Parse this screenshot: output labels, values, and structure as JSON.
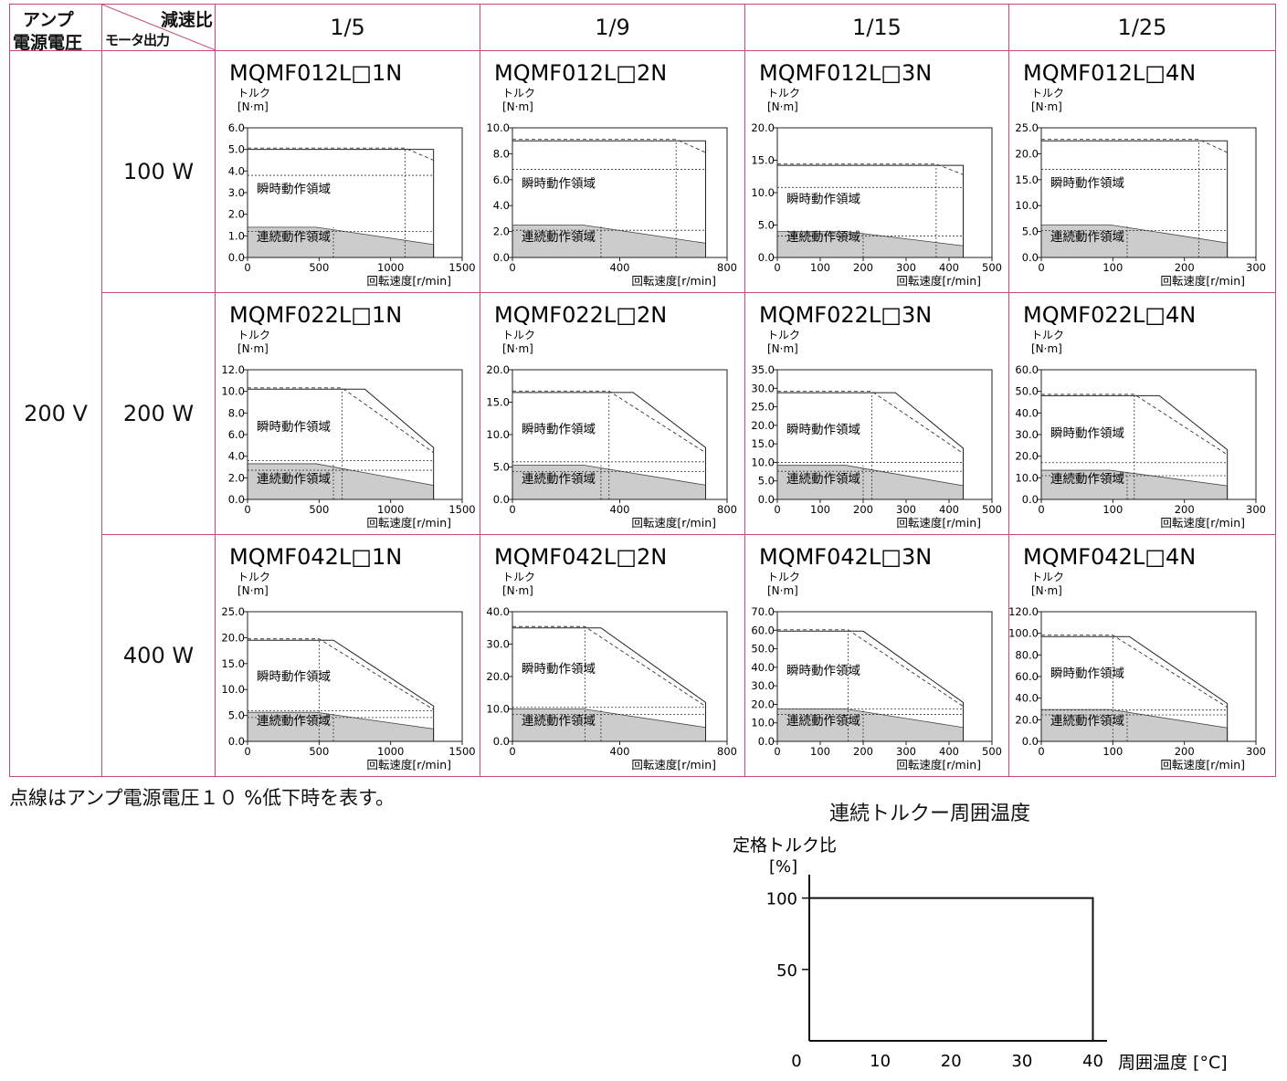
{
  "header": {
    "amp_label_line1": "アンプ",
    "amp_label_line2": "電源電圧",
    "reduction_ratio_label": "減速比",
    "motor_output_label": "モータ出力",
    "ratios": [
      "1/5",
      "1/9",
      "1/15",
      "1/25"
    ]
  },
  "voltage": "200 V",
  "rows": [
    {
      "output": "100 W"
    },
    {
      "output": "200 W"
    },
    {
      "output": "400 W"
    }
  ],
  "axis_text": {
    "y_label_1": "トルク",
    "y_label_2": "[N·m]",
    "x_label": "回転速度[r/min]",
    "intermittent_region": "瞬時動作領域",
    "continuous_region": "連続動作領域"
  },
  "chart_data": [
    {
      "type": "area",
      "title": "MQMF012L□1N",
      "xlabel": "回転速度[r/min]",
      "ylabel": "トルク [N·m]",
      "xlim": [
        0,
        1500
      ],
      "ylim": [
        0,
        6
      ],
      "xticks": [
        0,
        500,
        1000,
        1500
      ],
      "yticks": [
        0,
        1,
        2,
        3,
        4,
        5,
        6
      ],
      "ytick_labels": [
        "0.0",
        "1.0",
        "2.0",
        "3.0",
        "4.0",
        "5.0",
        "6.0"
      ],
      "peak_torque": 5.0,
      "peak_end_speed": 1300,
      "max_speed": 1300,
      "max_speed_torque": 5.0,
      "peak_torque_low": 3.8,
      "dashed_end_speed": 1100,
      "dashed_max_torque": 3.8,
      "cont_start": 1.4,
      "cont_end": 0.6,
      "cont_dashed": 1.2,
      "cont_knee": 600
    },
    {
      "type": "area",
      "title": "MQMF012L□2N",
      "xlabel": "回転速度[r/min]",
      "ylabel": "トルク [N·m]",
      "xlim": [
        0,
        800
      ],
      "ylim": [
        0,
        10
      ],
      "xticks": [
        0,
        400,
        800
      ],
      "yticks": [
        0,
        2,
        4,
        6,
        8,
        10
      ],
      "ytick_labels": [
        "0.0",
        "2.0",
        "4.0",
        "6.0",
        "8.0",
        "10.0"
      ],
      "peak_torque": 9.0,
      "peak_end_speed": 720,
      "max_speed": 720,
      "max_speed_torque": 9.0,
      "peak_torque_low": 6.8,
      "dashed_end_speed": 610,
      "dashed_max_torque": 6.8,
      "cont_start": 2.5,
      "cont_end": 1.1,
      "cont_dashed": 2.1,
      "cont_knee": 330
    },
    {
      "type": "area",
      "title": "MQMF012L□3N",
      "xlabel": "回転速度[r/min]",
      "ylabel": "トルク [N·m]",
      "xlim": [
        0,
        500
      ],
      "ylim": [
        0,
        20
      ],
      "xticks": [
        0,
        100,
        200,
        300,
        400,
        500
      ],
      "yticks": [
        0,
        5,
        10,
        15,
        20
      ],
      "ytick_labels": [
        "0.0",
        "5.0",
        "10.0",
        "15.0",
        "20.0"
      ],
      "peak_torque": 14.2,
      "peak_end_speed": 433,
      "max_speed": 433,
      "max_speed_torque": 14.2,
      "peak_torque_low": 10.8,
      "dashed_end_speed": 370,
      "dashed_max_torque": 10.8,
      "cont_start": 4.0,
      "cont_end": 1.8,
      "cont_dashed": 3.3,
      "cont_knee": 200
    },
    {
      "type": "area",
      "title": "MQMF012L□4N",
      "xlabel": "回転速度[r/min]",
      "ylabel": "トルク [N·m]",
      "xlim": [
        0,
        300
      ],
      "ylim": [
        0,
        25
      ],
      "xticks": [
        0,
        100,
        200,
        300
      ],
      "yticks": [
        0,
        5,
        10,
        15,
        20,
        25
      ],
      "ytick_labels": [
        "0.0",
        "5.0",
        "10.0",
        "15.0",
        "20.0",
        "25.0"
      ],
      "peak_torque": 22.5,
      "peak_end_speed": 260,
      "max_speed": 260,
      "max_speed_torque": 22.5,
      "peak_torque_low": 17.0,
      "dashed_end_speed": 220,
      "dashed_max_torque": 17.0,
      "cont_start": 6.3,
      "cont_end": 2.8,
      "cont_dashed": 5.2,
      "cont_knee": 120
    },
    {
      "type": "area",
      "title": "MQMF022L□1N",
      "xlabel": "回転速度[r/min]",
      "ylabel": "トルク [N·m]",
      "xlim": [
        0,
        1500
      ],
      "ylim": [
        0,
        12
      ],
      "xticks": [
        0,
        500,
        1000,
        1500
      ],
      "yticks": [
        0,
        2,
        4,
        6,
        8,
        10,
        12
      ],
      "ytick_labels": [
        "0.0",
        "2.0",
        "4.0",
        "6.0",
        "8.0",
        "10.0",
        "12.0"
      ],
      "peak_torque": 10.2,
      "peak_end_speed": 820,
      "max_speed": 1300,
      "max_speed_torque": 4.8,
      "peak_torque_low": 3.6,
      "dashed_end_speed": 660,
      "dashed_max_torque": 3.6,
      "cont_start": 3.3,
      "cont_end": 1.3,
      "cont_dashed": 2.7,
      "cont_knee": 600
    },
    {
      "type": "area",
      "title": "MQMF022L□2N",
      "xlabel": "回転速度[r/min]",
      "ylabel": "トルク [N·m]",
      "xlim": [
        0,
        800
      ],
      "ylim": [
        0,
        20
      ],
      "xticks": [
        0,
        400,
        800
      ],
      "yticks": [
        0,
        5,
        10,
        15,
        20
      ],
      "ytick_labels": [
        "0.0",
        "5.0",
        "10.0",
        "15.0",
        "20.0"
      ],
      "peak_torque": 16.5,
      "peak_end_speed": 450,
      "max_speed": 720,
      "max_speed_torque": 8.0,
      "peak_torque_low": 5.8,
      "dashed_end_speed": 360,
      "dashed_max_torque": 5.8,
      "cont_start": 5.3,
      "cont_end": 2.2,
      "cont_dashed": 4.3,
      "cont_knee": 330
    },
    {
      "type": "area",
      "title": "MQMF022L□3N",
      "xlabel": "回転速度[r/min]",
      "ylabel": "トルク [N·m]",
      "xlim": [
        0,
        500
      ],
      "ylim": [
        0,
        35
      ],
      "xticks": [
        0,
        100,
        200,
        300,
        400,
        500
      ],
      "yticks": [
        0,
        5,
        10,
        15,
        20,
        25,
        30,
        35
      ],
      "ytick_labels": [
        "0.0",
        "5.0",
        "10.0",
        "15.0",
        "20.0",
        "25.0",
        "30.0",
        "35.0"
      ],
      "peak_torque": 28.8,
      "peak_end_speed": 275,
      "max_speed": 433,
      "max_speed_torque": 13.8,
      "peak_torque_low": 10.0,
      "dashed_end_speed": 220,
      "dashed_max_torque": 10.0,
      "cont_start": 9.2,
      "cont_end": 3.7,
      "cont_dashed": 7.6,
      "cont_knee": 200
    },
    {
      "type": "area",
      "title": "MQMF022L□4N",
      "xlabel": "回転速度[r/min]",
      "ylabel": "トルク [N·m]",
      "xlim": [
        0,
        300
      ],
      "ylim": [
        0,
        60
      ],
      "xticks": [
        0,
        100,
        200,
        300
      ],
      "yticks": [
        0,
        10,
        20,
        30,
        40,
        50,
        60
      ],
      "ytick_labels": [
        "0.0",
        "10.0",
        "20.0",
        "30.0",
        "40.0",
        "50.0",
        "60.0"
      ],
      "peak_torque": 48.0,
      "peak_end_speed": 165,
      "max_speed": 260,
      "max_speed_torque": 23.0,
      "peak_torque_low": 17.0,
      "dashed_end_speed": 130,
      "dashed_max_torque": 17.0,
      "cont_start": 13.5,
      "cont_end": 6.3,
      "cont_dashed": 11.0,
      "cont_knee": 120
    },
    {
      "type": "area",
      "title": "MQMF042L□1N",
      "xlabel": "回転速度[r/min]",
      "ylabel": "トルク [N·m]",
      "xlim": [
        0,
        1500
      ],
      "ylim": [
        0,
        25
      ],
      "xticks": [
        0,
        500,
        1000,
        1500
      ],
      "yticks": [
        0,
        5,
        10,
        15,
        20,
        25
      ],
      "ytick_labels": [
        "0.0",
        "5.0",
        "10.0",
        "15.0",
        "20.0",
        "25.0"
      ],
      "peak_torque": 19.5,
      "peak_end_speed": 600,
      "max_speed": 1300,
      "max_speed_torque": 6.8,
      "peak_torque_low": 5.9,
      "dashed_end_speed": 500,
      "dashed_max_torque": 5.9,
      "cont_start": 5.6,
      "cont_end": 2.4,
      "cont_dashed": 4.6,
      "cont_knee": 600
    },
    {
      "type": "area",
      "title": "MQMF042L□2N",
      "xlabel": "回転速度[r/min]",
      "ylabel": "トルク [N·m]",
      "xlim": [
        0,
        800
      ],
      "ylim": [
        0,
        40
      ],
      "xticks": [
        0,
        400,
        800
      ],
      "yticks": [
        0,
        10,
        20,
        30,
        40
      ],
      "ytick_labels": [
        "0.0",
        "10.0",
        "20.0",
        "30.0",
        "40.0"
      ],
      "peak_torque": 35.0,
      "peak_end_speed": 330,
      "max_speed": 720,
      "max_speed_torque": 12.0,
      "peak_torque_low": 10.5,
      "dashed_end_speed": 270,
      "dashed_max_torque": 10.5,
      "cont_start": 10.0,
      "cont_end": 4.3,
      "cont_dashed": 8.3,
      "cont_knee": 330
    },
    {
      "type": "area",
      "title": "MQMF042L□3N",
      "xlabel": "回転速度[r/min]",
      "ylabel": "トルク [N·m]",
      "xlim": [
        0,
        500
      ],
      "ylim": [
        0,
        70
      ],
      "xticks": [
        0,
        100,
        200,
        300,
        400,
        500
      ],
      "yticks": [
        0,
        10,
        20,
        30,
        40,
        50,
        60,
        70
      ],
      "ytick_labels": [
        "0.0",
        "10.0",
        "20.0",
        "30.0",
        "40.0",
        "50.0",
        "60.0",
        "70.0"
      ],
      "peak_torque": 59.5,
      "peak_end_speed": 200,
      "max_speed": 433,
      "max_speed_torque": 21.0,
      "peak_torque_low": 17.5,
      "dashed_end_speed": 165,
      "dashed_max_torque": 17.5,
      "cont_start": 17.5,
      "cont_end": 7.5,
      "cont_dashed": 14.5,
      "cont_knee": 200
    },
    {
      "type": "area",
      "title": "MQMF042L□4N",
      "xlabel": "回転速度[r/min]",
      "ylabel": "トルク [N·m]",
      "xlim": [
        0,
        300
      ],
      "ylim": [
        0,
        120
      ],
      "xticks": [
        0,
        100,
        200,
        300
      ],
      "yticks": [
        0,
        20,
        40,
        60,
        80,
        100,
        120
      ],
      "ytick_labels": [
        "0.0",
        "20.0",
        "40.0",
        "60.0",
        "80.0",
        "100.0",
        "120.0"
      ],
      "peak_torque": 97.0,
      "peak_end_speed": 123,
      "max_speed": 260,
      "max_speed_torque": 35.0,
      "peak_torque_low": 29.0,
      "dashed_end_speed": 100,
      "dashed_max_torque": 29.0,
      "cont_start": 29.5,
      "cont_end": 12.5,
      "cont_dashed": 24.5,
      "cont_knee": 120
    },
    {
      "type": "line",
      "title": "連続トルクー周囲温度",
      "ylabel": "定格トルク比",
      "yunit": "[%]",
      "xlabel": "周囲温度 [°C]",
      "xticks": [
        0,
        10,
        20,
        30,
        40
      ],
      "yticks": [
        50,
        100
      ],
      "xlim": [
        0,
        42
      ],
      "ylim": [
        0,
        110
      ],
      "x": [
        0,
        40,
        40
      ],
      "y": [
        100,
        100,
        0
      ]
    }
  ],
  "note": "点線はアンプ電源電圧１０ %低下時を表す。"
}
